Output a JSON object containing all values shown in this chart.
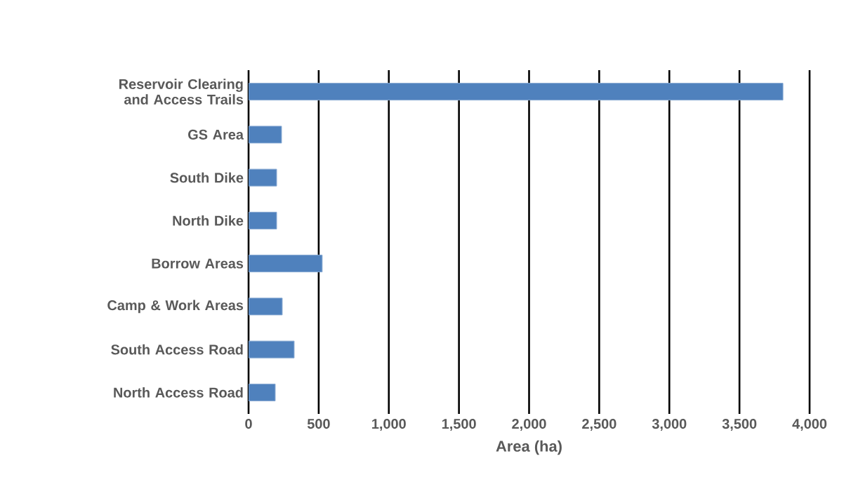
{
  "chart_data": {
    "type": "bar",
    "orientation": "horizontal",
    "categories": [
      "Reservoir Clearing and Access Trails",
      "GS Area",
      "South Dike",
      "North Dike",
      "Borrow Areas",
      "Camp & Work Areas",
      "South Access Road",
      "North Access Road"
    ],
    "values": [
      3810,
      235,
      200,
      200,
      525,
      240,
      325,
      190
    ],
    "color": "#4f81bd",
    "xlabel": "Area (ha)",
    "xlim": [
      0,
      4000
    ],
    "xticks": [
      0,
      500,
      {
        "value": 1000,
        "label": "1,000"
      },
      {
        "value": 1500,
        "label": "1,500"
      },
      {
        "value": 2000,
        "label": "2,000"
      },
      {
        "value": 2500,
        "label": "2,500"
      },
      {
        "value": 3000,
        "label": "3,000"
      },
      {
        "value": 3500,
        "label": "3,500"
      },
      {
        "value": 4000,
        "label": "4,000"
      }
    ],
    "grid": "x"
  }
}
